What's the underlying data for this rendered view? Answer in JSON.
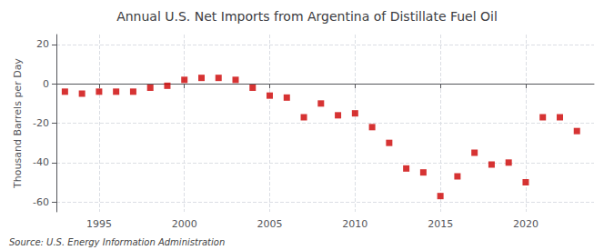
{
  "chart_data": {
    "type": "scatter",
    "title": "Annual U.S. Net Imports from Argentina of Distillate Fuel Oil",
    "ylabel": "Thousand Barrels per Day",
    "annotations": [
      "Source: U.S. Energy Information Administration"
    ],
    "x": [
      1993,
      1994,
      1995,
      1996,
      1997,
      1998,
      1999,
      2000,
      2001,
      2002,
      2003,
      2004,
      2005,
      2006,
      2007,
      2008,
      2009,
      2010,
      2011,
      2012,
      2013,
      2014,
      2015,
      2016,
      2017,
      2018,
      2019,
      2020,
      2021,
      2022,
      2023
    ],
    "values": [
      -4,
      -5,
      -4,
      -4,
      -4,
      -2,
      -1,
      2,
      3,
      3,
      2,
      -2,
      -6,
      -7,
      -17,
      -10,
      -16,
      -15,
      -22,
      -30,
      -43,
      -45,
      -57,
      -47,
      -35,
      -41,
      -40,
      -50,
      -17,
      -17,
      -24
    ],
    "color": "#cc0000",
    "marker": "square",
    "xlim": [
      1992.5,
      2024
    ],
    "xticks": [
      1995,
      2000,
      2005,
      2010,
      2015,
      2020
    ],
    "ylim": [
      -65,
      25
    ],
    "yticks": [
      -60,
      -40,
      -20,
      0,
      20
    ],
    "grid": true
  }
}
